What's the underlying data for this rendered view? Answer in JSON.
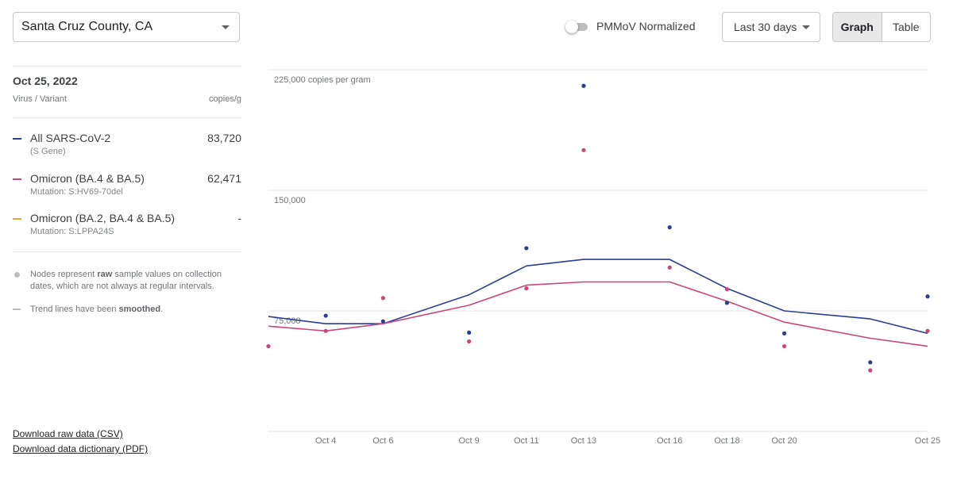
{
  "location": {
    "selected": "Santa Cruz County, CA"
  },
  "controls": {
    "pmmov_label": "PMMoV Normalized",
    "pmmov_enabled": false,
    "range_selected": "Last 30 days",
    "view_graph": "Graph",
    "view_table": "Table",
    "view_active": "Graph"
  },
  "sidebar": {
    "date": "Oct 25, 2022",
    "col_variant": "Virus / Variant",
    "col_unit": "copies/g",
    "legend": [
      {
        "name": "All SARS-CoV-2",
        "sub": "(S Gene)",
        "value": "83,720",
        "color": "#2c3e8f"
      },
      {
        "name": "Omicron (BA.4 & BA.5)",
        "sub": "Mutation: S:HV69-70del",
        "value": "62,471",
        "color": "#c9467a"
      },
      {
        "name": "Omicron (BA.2, BA.4 & BA.5)",
        "sub": "Mutation: S:LPPA24S",
        "value": "-",
        "color": "#e8a545"
      }
    ],
    "note_nodes_pre": "Nodes represent ",
    "note_nodes_bold": "raw",
    "note_nodes_post": " sample values on collection dates, which are not always at regular intervals.",
    "note_trend_pre": "Trend lines have been ",
    "note_trend_bold": "smoothed",
    "note_trend_post": ".",
    "download_csv": "Download raw data (CSV)",
    "download_pdf": "Download data dictionary (PDF)"
  },
  "chart_data": {
    "type": "line",
    "ylim": [
      0,
      225000
    ],
    "y_ticks": [
      {
        "value": 225000,
        "label": "225,000 copies per gram"
      },
      {
        "value": 150000,
        "label": "150,000"
      },
      {
        "value": 75000,
        "label": "75,000"
      }
    ],
    "x_domain": [
      "2022-10-02",
      "2022-10-25"
    ],
    "x_ticks": [
      {
        "date": "2022-10-04",
        "label": "Oct 4"
      },
      {
        "date": "2022-10-06",
        "label": "Oct 6"
      },
      {
        "date": "2022-10-09",
        "label": "Oct 9"
      },
      {
        "date": "2022-10-11",
        "label": "Oct 11"
      },
      {
        "date": "2022-10-13",
        "label": "Oct 13"
      },
      {
        "date": "2022-10-16",
        "label": "Oct 16"
      },
      {
        "date": "2022-10-18",
        "label": "Oct 18"
      },
      {
        "date": "2022-10-20",
        "label": "Oct 20"
      },
      {
        "date": "2022-10-25",
        "label": "Oct 25"
      }
    ],
    "series": [
      {
        "name": "All SARS-CoV-2",
        "color": "#2c3e8f",
        "points": [
          {
            "x": "2022-10-04",
            "y": 72000
          },
          {
            "x": "2022-10-06",
            "y": 68500
          },
          {
            "x": "2022-10-09",
            "y": 61500
          },
          {
            "x": "2022-10-11",
            "y": 114000
          },
          {
            "x": "2022-10-13",
            "y": 215000
          },
          {
            "x": "2022-10-16",
            "y": 127000
          },
          {
            "x": "2022-10-18",
            "y": 80000
          },
          {
            "x": "2022-10-20",
            "y": 61000
          },
          {
            "x": "2022-10-23",
            "y": 43000
          },
          {
            "x": "2022-10-25",
            "y": 84000
          }
        ],
        "trend": [
          {
            "x": "2022-10-02",
            "y": 71500
          },
          {
            "x": "2022-10-04",
            "y": 67000
          },
          {
            "x": "2022-10-06",
            "y": 67000
          },
          {
            "x": "2022-10-09",
            "y": 85000
          },
          {
            "x": "2022-10-11",
            "y": 103000
          },
          {
            "x": "2022-10-13",
            "y": 107000
          },
          {
            "x": "2022-10-16",
            "y": 107000
          },
          {
            "x": "2022-10-18",
            "y": 89000
          },
          {
            "x": "2022-10-20",
            "y": 75000
          },
          {
            "x": "2022-10-23",
            "y": 70000
          },
          {
            "x": "2022-10-25",
            "y": 61000
          }
        ]
      },
      {
        "name": "Omicron (BA.4 & BA.5)",
        "color": "#c9467a",
        "points": [
          {
            "x": "2022-10-02",
            "y": 53000
          },
          {
            "x": "2022-10-04",
            "y": 62500
          },
          {
            "x": "2022-10-06",
            "y": 83000
          },
          {
            "x": "2022-10-09",
            "y": 56000
          },
          {
            "x": "2022-10-11",
            "y": 89000
          },
          {
            "x": "2022-10-13",
            "y": 175000
          },
          {
            "x": "2022-10-16",
            "y": 102000
          },
          {
            "x": "2022-10-18",
            "y": 88500
          },
          {
            "x": "2022-10-20",
            "y": 53000
          },
          {
            "x": "2022-10-23",
            "y": 38000
          },
          {
            "x": "2022-10-25",
            "y": 62500
          }
        ],
        "trend": [
          {
            "x": "2022-10-02",
            "y": 65500
          },
          {
            "x": "2022-10-04",
            "y": 62500
          },
          {
            "x": "2022-10-06",
            "y": 67000
          },
          {
            "x": "2022-10-09",
            "y": 78500
          },
          {
            "x": "2022-10-11",
            "y": 91000
          },
          {
            "x": "2022-10-13",
            "y": 93000
          },
          {
            "x": "2022-10-16",
            "y": 93000
          },
          {
            "x": "2022-10-18",
            "y": 81000
          },
          {
            "x": "2022-10-20",
            "y": 68000
          },
          {
            "x": "2022-10-23",
            "y": 58000
          },
          {
            "x": "2022-10-25",
            "y": 53000
          }
        ]
      }
    ]
  }
}
